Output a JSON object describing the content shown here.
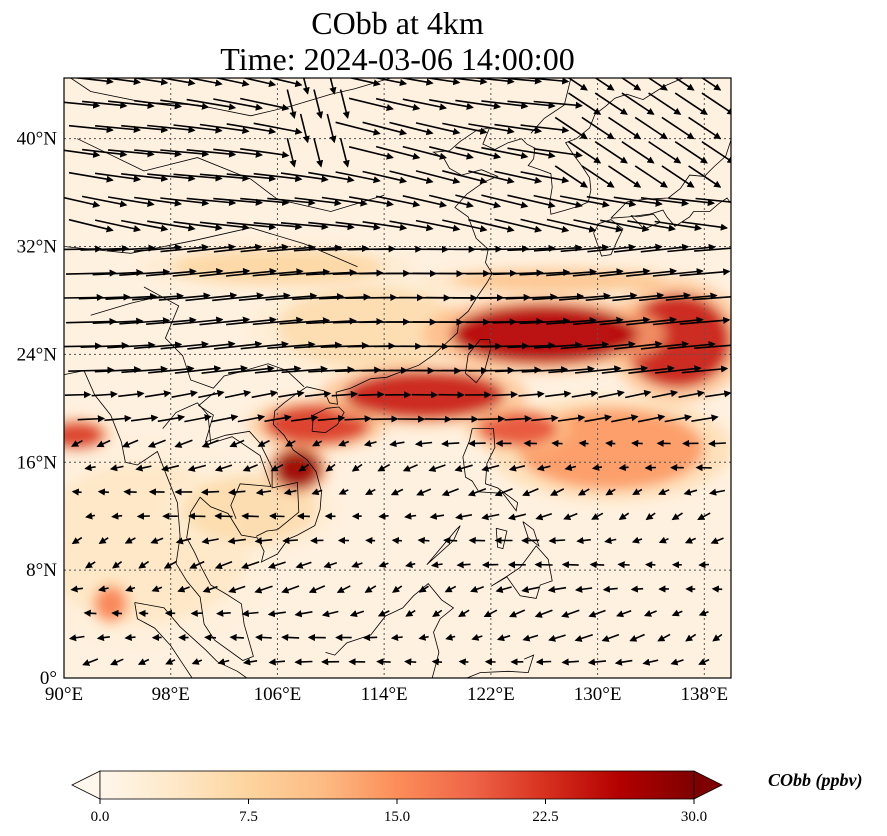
{
  "title": {
    "line1": "CObb at 4km",
    "line2": "Time: 2024-03-06 14:00:00"
  },
  "map": {
    "lon_range": [
      90,
      140
    ],
    "lat_range": [
      0,
      44.5
    ],
    "gridlines": true,
    "coastlines": true,
    "lon_ticks": [
      {
        "value": 90,
        "label": "90°E"
      },
      {
        "value": 98,
        "label": "98°E"
      },
      {
        "value": 106,
        "label": "106°E"
      },
      {
        "value": 114,
        "label": "114°E"
      },
      {
        "value": 122,
        "label": "122°E"
      },
      {
        "value": 130,
        "label": "130°E"
      },
      {
        "value": 138,
        "label": "138°E"
      }
    ],
    "lat_ticks": [
      {
        "value": 0,
        "label": "0°"
      },
      {
        "value": 8,
        "label": "8°N"
      },
      {
        "value": 16,
        "label": "16°N"
      },
      {
        "value": 24,
        "label": "24°N"
      },
      {
        "value": 32,
        "label": "32°N"
      },
      {
        "value": 40,
        "label": "40°N"
      }
    ]
  },
  "field": {
    "variable": "CObb",
    "units": "ppbv",
    "plumes": [
      {
        "lon": 126,
        "lat": 25.5,
        "sx": 7,
        "sy": 2.2,
        "value": 26
      },
      {
        "lon": 136,
        "lat": 25,
        "sx": 4,
        "sy": 3.5,
        "value": 24
      },
      {
        "lon": 117,
        "lat": 21,
        "sx": 6,
        "sy": 1.8,
        "value": 24
      },
      {
        "lon": 109,
        "lat": 18.8,
        "sx": 4,
        "sy": 1.5,
        "value": 22
      },
      {
        "lon": 107.5,
        "lat": 15.5,
        "sx": 1.8,
        "sy": 1.5,
        "value": 28
      },
      {
        "lon": 124,
        "lat": 18.5,
        "sx": 3,
        "sy": 1.3,
        "value": 20
      },
      {
        "lon": 131,
        "lat": 17,
        "sx": 7,
        "sy": 3,
        "value": 14
      },
      {
        "lon": 91,
        "lat": 18,
        "sx": 2,
        "sy": 1,
        "value": 22
      },
      {
        "lon": 93.5,
        "lat": 5.5,
        "sx": 1.2,
        "sy": 1.3,
        "value": 16
      },
      {
        "lon": 106,
        "lat": 30.5,
        "sx": 8,
        "sy": 1.3,
        "value": 7
      },
      {
        "lon": 127,
        "lat": 29.5,
        "sx": 8,
        "sy": 0.8,
        "value": 10
      },
      {
        "lon": 104,
        "lat": 12.5,
        "sx": 5,
        "sy": 2.5,
        "value": 6
      },
      {
        "lon": 113,
        "lat": 26,
        "sx": 7,
        "sy": 3,
        "value": 6
      },
      {
        "lon": 96,
        "lat": 10,
        "sx": 8,
        "sy": 6,
        "value": 4
      }
    ]
  },
  "wind_vectors": {
    "grid_lon_step": 2,
    "grid_lat_step": 1.8,
    "description_bands": [
      {
        "lat_min": 32,
        "lat_max": 44.5,
        "direction": "east-southeast",
        "speed": "strong"
      },
      {
        "lat_min": 20,
        "lat_max": 32,
        "direction": "east",
        "speed": "strong"
      },
      {
        "lat_min": 0,
        "lat_max": 20,
        "direction": "west",
        "speed": "weak"
      }
    ]
  },
  "colorbar": {
    "title": "CObb (ppbv)",
    "min": 0,
    "max": 30,
    "extend": "both",
    "colormap": "OrRd",
    "colors": [
      "#fff7ec",
      "#fee8c8",
      "#fdd49e",
      "#fdbb84",
      "#fc8d59",
      "#ef6548",
      "#d7301f",
      "#b30000",
      "#7f0000"
    ],
    "ticks": [
      {
        "value": 0,
        "label": "0.0"
      },
      {
        "value": 7.5,
        "label": "7.5"
      },
      {
        "value": 15,
        "label": "15.0"
      },
      {
        "value": 22.5,
        "label": "22.5"
      },
      {
        "value": 30,
        "label": "30.0"
      }
    ]
  }
}
